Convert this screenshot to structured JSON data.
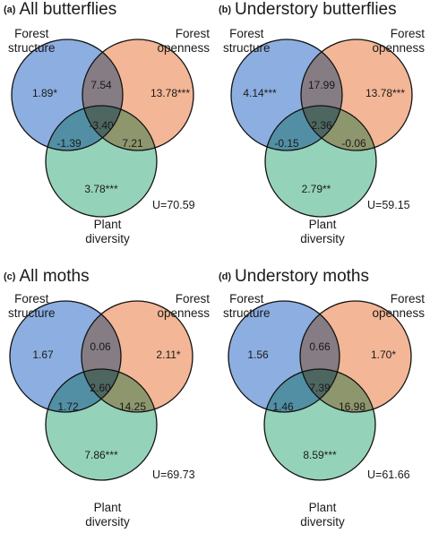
{
  "colors": {
    "structure": "#5f8fd6",
    "openness": "#ef9a6e",
    "plant": "#6cc1a0",
    "stroke": "#111111"
  },
  "panels": [
    {
      "letter": "(a)",
      "title": "All butterflies",
      "set_labels": {
        "structure": [
          "Forest",
          "structure"
        ],
        "openness": [
          "Forest",
          "openness"
        ],
        "plant": [
          "Plant",
          "diversity"
        ]
      },
      "values": {
        "structure_only": "1.89*",
        "openness_only": "13.78***",
        "structure_openness": "7.54",
        "center": "-3.40",
        "structure_plant": "-1.39",
        "openness_plant": "7.21",
        "plant_only": "3.78***"
      },
      "u": "U=70.59"
    },
    {
      "letter": "(b)",
      "title": "Understory butterflies",
      "set_labels": {
        "structure": [
          "Forest",
          "structure"
        ],
        "openness": [
          "Forest",
          "openness"
        ],
        "plant": [
          "Plant",
          "diversity"
        ]
      },
      "values": {
        "structure_only": "4.14***",
        "openness_only": "13.78***",
        "structure_openness": "17.99",
        "center": "2.36",
        "structure_plant": "-0.15",
        "openness_plant": "-0.06",
        "plant_only": "2.79**"
      },
      "u": "U=59.15"
    },
    {
      "letter": "(c)",
      "title": "All moths",
      "set_labels": {
        "structure": [
          "Forest",
          "structure"
        ],
        "openness": [
          "Forest",
          "openness"
        ],
        "plant": [
          "Plant",
          "diversity"
        ]
      },
      "values": {
        "structure_only": "1.67",
        "openness_only": "2.11*",
        "structure_openness": "0.06",
        "center": "2.60",
        "structure_plant": "1.72",
        "openness_plant": "14.25",
        "plant_only": "7.86***"
      },
      "u": "U=69.73"
    },
    {
      "letter": "(d)",
      "title": "Understory moths",
      "set_labels": {
        "structure": [
          "Forest",
          "structure"
        ],
        "openness": [
          "Forest",
          "openness"
        ],
        "plant": [
          "Plant",
          "diversity"
        ]
      },
      "values": {
        "structure_only": "1.56",
        "openness_only": "1.70*",
        "structure_openness": "0.66",
        "center": "7.39",
        "structure_plant": "1.46",
        "openness_plant": "16.98",
        "plant_only": "8.59***"
      },
      "u": "U=61.66"
    }
  ]
}
